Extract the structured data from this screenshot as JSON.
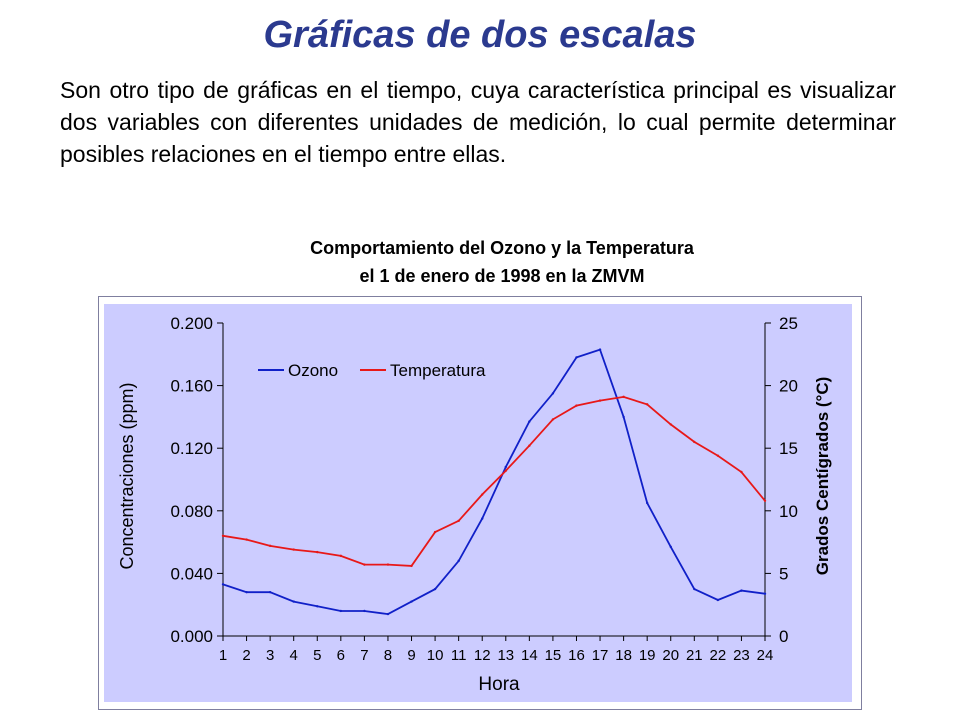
{
  "slide": {
    "title": "Gráficas de dos escalas",
    "body": "Son otro tipo de gráficas en el tiempo, cuya característica principal es visualizar dos variables con diferentes unidades de medición, lo cual permite determinar posibles relaciones en el tiempo entre ellas."
  },
  "chart_data": {
    "type": "line",
    "title_line1": "Comportamiento del Ozono y la Temperatura",
    "title_line2": "el 1 de enero de 1998 en la ZMVM",
    "xlabel": "Hora",
    "ylabel_left": "Concentraciones (ppm)",
    "ylabel_right": "Grados Centígrados (°C)",
    "x": [
      1,
      2,
      3,
      4,
      5,
      6,
      7,
      8,
      9,
      10,
      11,
      12,
      13,
      14,
      15,
      16,
      17,
      18,
      19,
      20,
      21,
      22,
      23,
      24
    ],
    "y_left_lim": [
      0,
      0.2
    ],
    "y_left_ticks": [
      "0.000",
      "0.040",
      "0.080",
      "0.120",
      "0.160",
      "0.200"
    ],
    "y_right_lim": [
      0,
      25
    ],
    "y_right_ticks": [
      "0",
      "5",
      "10",
      "15",
      "20",
      "25"
    ],
    "legend_position": "top-left",
    "series": [
      {
        "name": "Ozono",
        "axis": "left",
        "color": "#1020c8",
        "values": [
          0.033,
          0.028,
          0.028,
          0.022,
          0.019,
          0.016,
          0.016,
          0.014,
          0.022,
          0.03,
          0.048,
          0.075,
          0.108,
          0.137,
          0.155,
          0.178,
          0.183,
          0.14,
          0.085,
          0.057,
          0.03,
          0.023,
          0.029,
          0.027
        ]
      },
      {
        "name": "Temperatura",
        "axis": "right",
        "color": "#e81818",
        "values": [
          8.0,
          7.7,
          7.2,
          6.9,
          6.7,
          6.4,
          5.7,
          5.7,
          5.6,
          8.3,
          9.2,
          11.3,
          13.2,
          15.2,
          17.3,
          18.4,
          18.8,
          19.1,
          18.5,
          16.9,
          15.5,
          14.4,
          13.1,
          10.8
        ]
      }
    ],
    "grid": false,
    "plot_bg": "#ccccff"
  }
}
